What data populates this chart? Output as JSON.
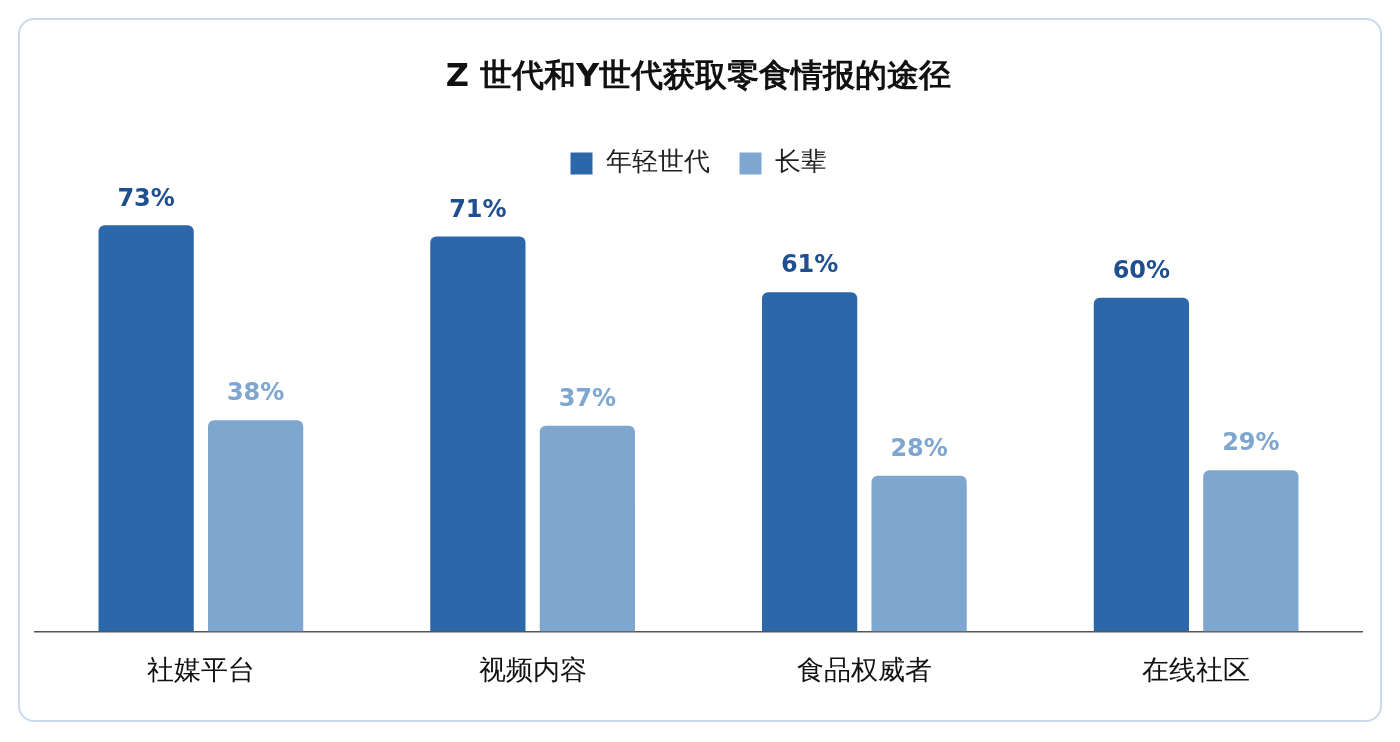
{
  "chart_data": {
    "type": "bar",
    "title": "Z 世代和Y世代获取零食情报的途径",
    "categories": [
      "社媒平台",
      "视频内容",
      "食品权威者",
      "在线社区"
    ],
    "series": [
      {
        "name": "年轻世代",
        "color": "#2c68a9",
        "values": [
          73,
          71,
          61,
          60
        ],
        "value_labels": [
          "73%",
          "71%",
          "61%",
          "60%"
        ]
      },
      {
        "name": "长辈",
        "color": "#7fa6cf",
        "values": [
          38,
          37,
          28,
          29
        ],
        "value_labels": [
          "38%",
          "37%",
          "28%",
          "29%"
        ]
      }
    ],
    "tick_labels": "x",
    "grid": false,
    "legend": "top"
  }
}
